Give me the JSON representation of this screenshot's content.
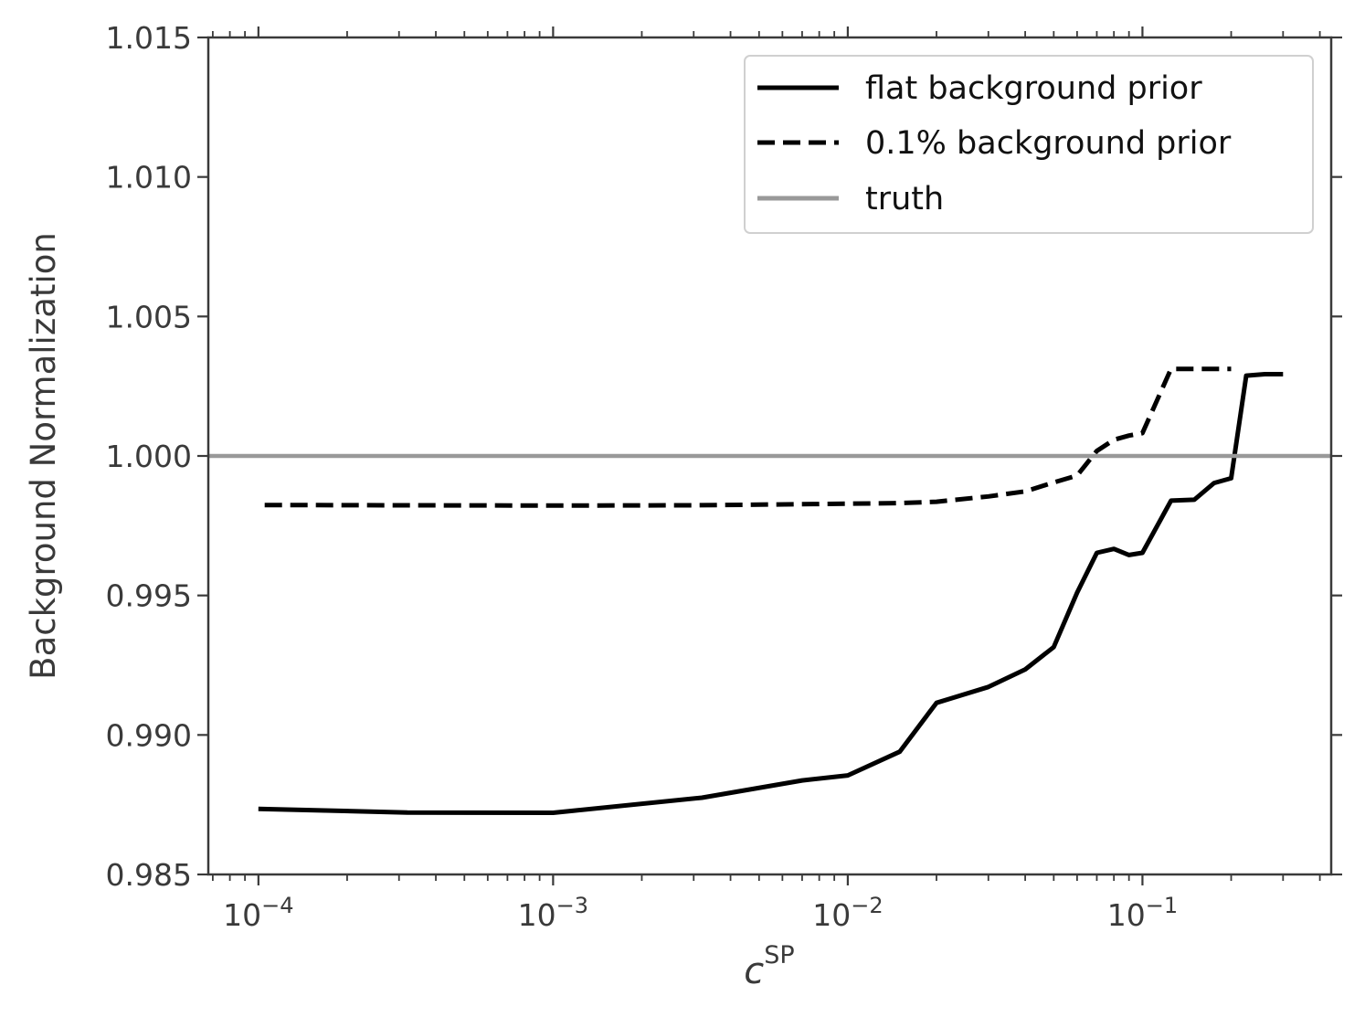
{
  "chart_data": {
    "type": "line",
    "xscale": "log",
    "xlim": [
      6.76e-05,
      0.437
    ],
    "ylim": [
      0.985,
      1.015
    ],
    "grid": false,
    "legend_placement": "top-right",
    "xlabel": {
      "base": "c",
      "superscript": "SP"
    },
    "ylabel": "Background Normalization",
    "yticks": [
      {
        "value": 0.985,
        "label": "0.985"
      },
      {
        "value": 0.99,
        "label": "0.990"
      },
      {
        "value": 0.995,
        "label": "0.995"
      },
      {
        "value": 1.0,
        "label": "1.000"
      },
      {
        "value": 1.005,
        "label": "1.005"
      },
      {
        "value": 1.01,
        "label": "1.010"
      },
      {
        "value": 1.015,
        "label": "1.015"
      }
    ],
    "xticks": [
      {
        "value": 0.0001,
        "base": "10",
        "exp": "−4"
      },
      {
        "value": 0.001,
        "base": "10",
        "exp": "−3"
      },
      {
        "value": 0.01,
        "base": "10",
        "exp": "−2"
      },
      {
        "value": 0.1,
        "base": "10",
        "exp": "−1"
      }
    ],
    "series": [
      {
        "name": "flat background prior",
        "style": "solid",
        "color": "#000000",
        "x": [
          0.0001,
          0.00032,
          0.001,
          0.0032,
          0.007,
          0.01,
          0.015,
          0.02,
          0.03,
          0.04,
          0.05,
          0.06,
          0.07,
          0.08,
          0.09,
          0.1,
          0.125,
          0.15,
          0.175,
          0.2,
          0.225,
          0.26,
          0.3
        ],
        "y": [
          0.98735,
          0.98722,
          0.98721,
          0.98775,
          0.98837,
          0.98855,
          0.9894,
          0.99115,
          0.99172,
          0.99235,
          0.99315,
          0.9951,
          0.99653,
          0.99667,
          0.99645,
          0.99653,
          0.9984,
          0.99843,
          0.99903,
          0.9992,
          1.00288,
          1.00293,
          1.00293
        ]
      },
      {
        "name": "0.1% background prior",
        "style": "dashed",
        "color": "#000000",
        "x": [
          0.000105,
          0.001,
          0.003,
          0.007,
          0.01,
          0.015,
          0.02,
          0.03,
          0.04,
          0.05,
          0.06,
          0.07,
          0.08,
          0.09,
          0.1,
          0.125,
          0.15,
          0.175,
          0.2
        ],
        "y": [
          0.99824,
          0.99822,
          0.99823,
          0.99827,
          0.99829,
          0.99831,
          0.99836,
          0.99855,
          0.99873,
          0.99905,
          0.9993,
          1.00018,
          1.00058,
          1.00073,
          1.00082,
          1.00312,
          1.00312,
          1.00312,
          1.00312
        ]
      },
      {
        "name": "truth",
        "style": "solid",
        "color": "#999999",
        "y_const": 1.0
      }
    ]
  }
}
